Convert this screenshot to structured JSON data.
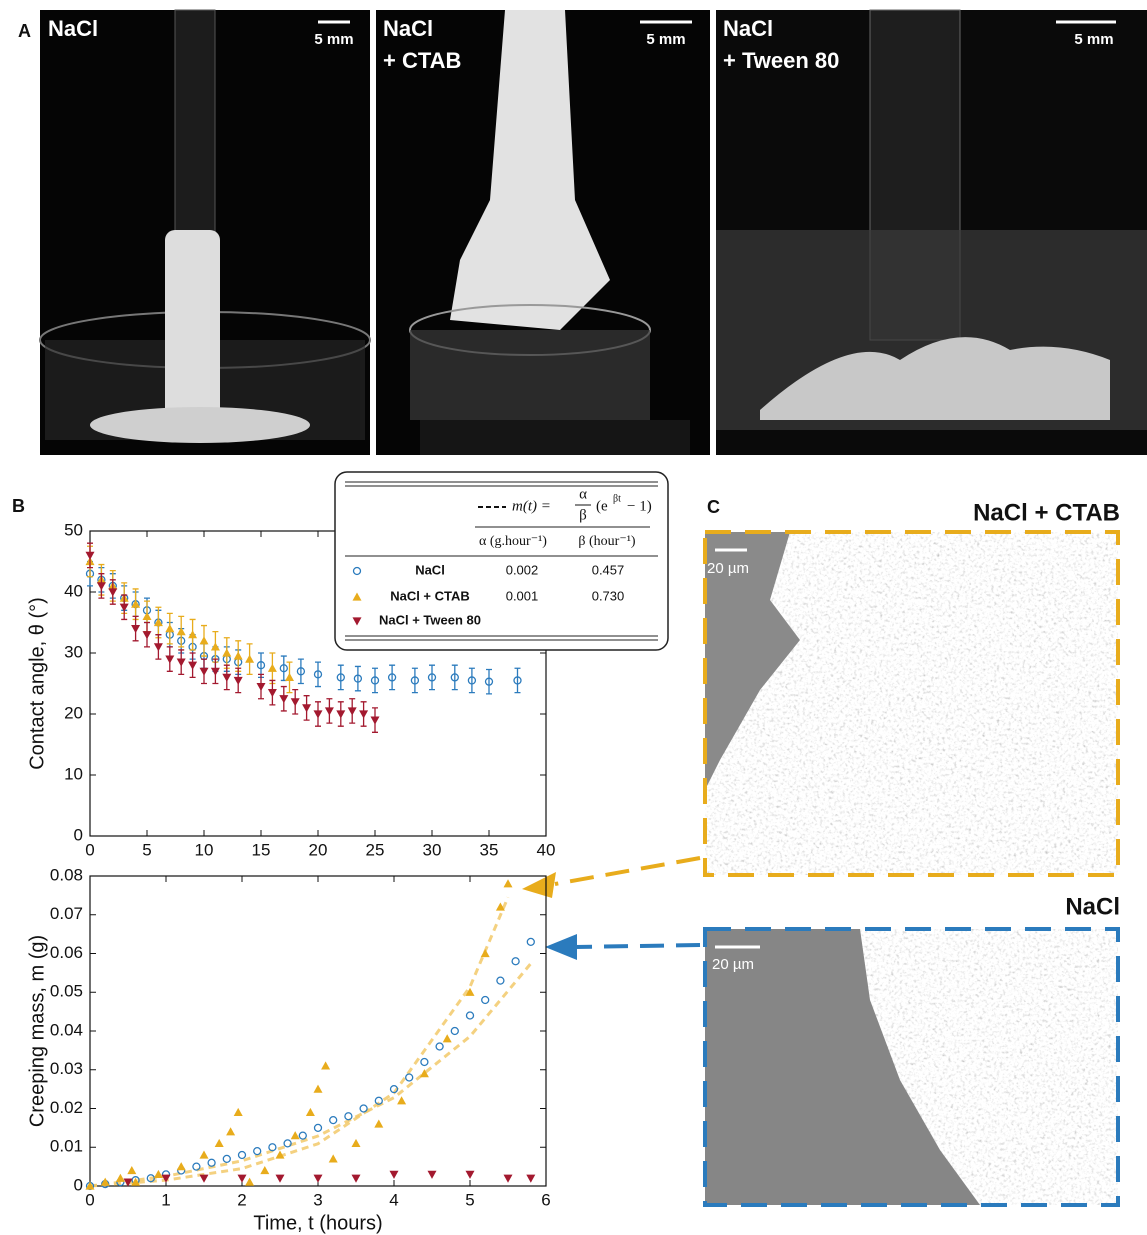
{
  "panels": {
    "a": "A",
    "b": "B",
    "c": "C"
  },
  "photos": [
    {
      "label": [
        "NaCl"
      ],
      "scale": "5 mm"
    },
    {
      "label": [
        "NaCl",
        "+ CTAB"
      ],
      "scale": "5 mm"
    },
    {
      "label": [
        "NaCl",
        "+ Tween 80"
      ],
      "scale": "5 mm"
    }
  ],
  "legend_table": {
    "formula": {
      "lhs": "m(t) =",
      "num": "α",
      "den": "β",
      "base": "(e",
      "exp": "βt",
      "tail": " − 1)"
    },
    "columns": [
      "α (g.hour⁻¹)",
      "β (hour⁻¹)"
    ],
    "rows": [
      [
        "0.002",
        "0.457"
      ],
      [
        "0.001",
        "0.730"
      ],
      [
        "",
        ""
      ]
    ]
  },
  "sem": [
    {
      "title": "NaCl + CTAB",
      "scale": "20 µm"
    },
    {
      "title": "NaCl",
      "scale": "20 µm"
    }
  ],
  "chart_data": [
    {
      "type": "scatter",
      "ylabel": "Contact angle, θ (°)",
      "xlim": [
        0,
        40
      ],
      "xticks": [
        0,
        5,
        10,
        15,
        20,
        25,
        30,
        35,
        40
      ],
      "ylim": [
        0,
        50
      ],
      "yticks": [
        0,
        10,
        20,
        30,
        40,
        50
      ],
      "series": [
        {
          "name": "NaCl",
          "color": "#2b7bbd",
          "marker": "circle",
          "x": [
            0,
            1,
            2,
            3,
            4,
            5,
            6,
            7,
            8,
            9,
            10,
            11,
            12,
            13,
            15,
            17,
            18.5,
            20,
            22,
            23.5,
            25,
            26.5,
            28.5,
            30,
            32,
            33.5,
            35,
            37.5
          ],
          "values": [
            43,
            42,
            41,
            39,
            38,
            37,
            35,
            33,
            32,
            31,
            29.5,
            29,
            29,
            28.5,
            28,
            27.5,
            27,
            26.5,
            26,
            25.8,
            25.5,
            26,
            25.5,
            26,
            26,
            25.5,
            25.3,
            25.5
          ],
          "errors": [
            2,
            2,
            2,
            2,
            2,
            2,
            2,
            2,
            2,
            2,
            2,
            2,
            2,
            2,
            2,
            2,
            2,
            2,
            2,
            2,
            2,
            2,
            2,
            2,
            2,
            2,
            2,
            2
          ]
        },
        {
          "name": "NaCl + CTAB",
          "color": "#e8ac1c",
          "marker": "triangle-up",
          "x": [
            0,
            1,
            2,
            3,
            4,
            5,
            6,
            7,
            8,
            9,
            10,
            11,
            12,
            13,
            14,
            16,
            17.5
          ],
          "values": [
            45,
            42,
            41,
            39,
            38,
            36,
            35,
            34,
            33.5,
            33,
            32,
            31,
            30,
            29.5,
            29,
            27.5,
            26
          ],
          "errors": [
            2.5,
            2.5,
            2.5,
            2.5,
            2.5,
            2.5,
            2.5,
            2.5,
            2.5,
            2.5,
            2.5,
            2.5,
            2.5,
            2.5,
            2.5,
            2.5,
            2.5
          ]
        },
        {
          "name": "NaCl + Tween 80",
          "color": "#a3192f",
          "marker": "triangle-down",
          "x": [
            0,
            1,
            2,
            3,
            4,
            5,
            6,
            7,
            8,
            9,
            10,
            11,
            12,
            13,
            15,
            16,
            17,
            18,
            19,
            20,
            21,
            22,
            23,
            24,
            25
          ],
          "values": [
            46,
            41,
            40,
            37.5,
            34,
            33,
            31,
            29,
            28.5,
            28,
            27,
            27,
            26,
            25.5,
            24.5,
            23.5,
            22.5,
            22,
            21,
            20,
            20.5,
            20,
            20.5,
            20,
            19
          ],
          "errors": [
            2,
            2,
            2,
            2,
            2,
            2,
            2,
            2,
            2,
            2,
            2,
            2,
            2,
            2,
            2,
            2,
            2,
            2,
            2,
            2,
            2,
            2,
            2,
            2,
            2
          ]
        }
      ]
    },
    {
      "type": "scatter",
      "xlabel": "Time, t (hours)",
      "ylabel": "Creeping mass, m (g)",
      "xlim": [
        0,
        6
      ],
      "xticks": [
        0,
        1,
        2,
        3,
        4,
        5,
        6
      ],
      "ylim": [
        0,
        0.08
      ],
      "yticks": [
        0,
        0.01,
        0.02,
        0.03,
        0.04,
        0.05,
        0.06,
        0.07,
        0.08
      ],
      "series": [
        {
          "color": "#f2c96a",
          "style": "dashed",
          "x": [
            0,
            1,
            2,
            3,
            4,
            5,
            5.8
          ],
          "values": [
            0,
            0.0025,
            0.0065,
            0.0129,
            0.0228,
            0.0386,
            0.0574
          ]
        },
        {
          "color": "#f2c96a",
          "style": "dashed",
          "x": [
            0,
            1,
            2,
            3,
            4,
            5,
            5.5
          ],
          "values": [
            0,
            0.0015,
            0.0045,
            0.0109,
            0.024,
            0.0514,
            0.0745
          ]
        },
        {
          "color": "#2b7bbd",
          "marker": "circle",
          "x": [
            0,
            0.2,
            0.4,
            0.6,
            0.8,
            1,
            1.2,
            1.4,
            1.6,
            1.8,
            2,
            2.2,
            2.4,
            2.6,
            2.8,
            3,
            3.2,
            3.4,
            3.6,
            3.8,
            4,
            4.2,
            4.4,
            4.6,
            4.8,
            5,
            5.2,
            5.4,
            5.6,
            5.8
          ],
          "values": [
            0,
            0.0005,
            0.001,
            0.0015,
            0.002,
            0.003,
            0.004,
            0.005,
            0.006,
            0.007,
            0.008,
            0.009,
            0.01,
            0.011,
            0.013,
            0.015,
            0.017,
            0.018,
            0.02,
            0.022,
            0.025,
            0.028,
            0.032,
            0.036,
            0.04,
            0.044,
            0.048,
            0.053,
            0.058,
            0.063
          ]
        },
        {
          "color": "#e8ac1c",
          "marker": "triangle-up",
          "x": [
            0,
            0.2,
            0.4,
            0.55,
            0.6,
            0.9,
            1.2,
            1.5,
            1.7,
            1.85,
            1.95,
            2.1,
            2.3,
            2.5,
            2.7,
            2.9,
            3,
            3.1,
            3.2,
            3.5,
            3.8,
            4.1,
            4.4,
            4.7,
            5,
            5.2,
            5.4,
            5.5
          ],
          "values": [
            0,
            0.001,
            0.002,
            0.004,
            0.001,
            0.003,
            0.005,
            0.008,
            0.011,
            0.014,
            0.019,
            0.001,
            0.004,
            0.008,
            0.013,
            0.019,
            0.025,
            0.031,
            0.007,
            0.011,
            0.016,
            0.022,
            0.029,
            0.038,
            0.05,
            0.06,
            0.072,
            0.078
          ]
        },
        {
          "color": "#a3192f",
          "marker": "triangle-down",
          "x": [
            0.5,
            1,
            1.5,
            2,
            2.5,
            3,
            3.5,
            4,
            4.5,
            5,
            5.5,
            5.8
          ],
          "values": [
            0.001,
            0.002,
            0.002,
            0.002,
            0.002,
            0.002,
            0.002,
            0.003,
            0.003,
            0.003,
            0.002,
            0.002
          ]
        }
      ]
    }
  ]
}
